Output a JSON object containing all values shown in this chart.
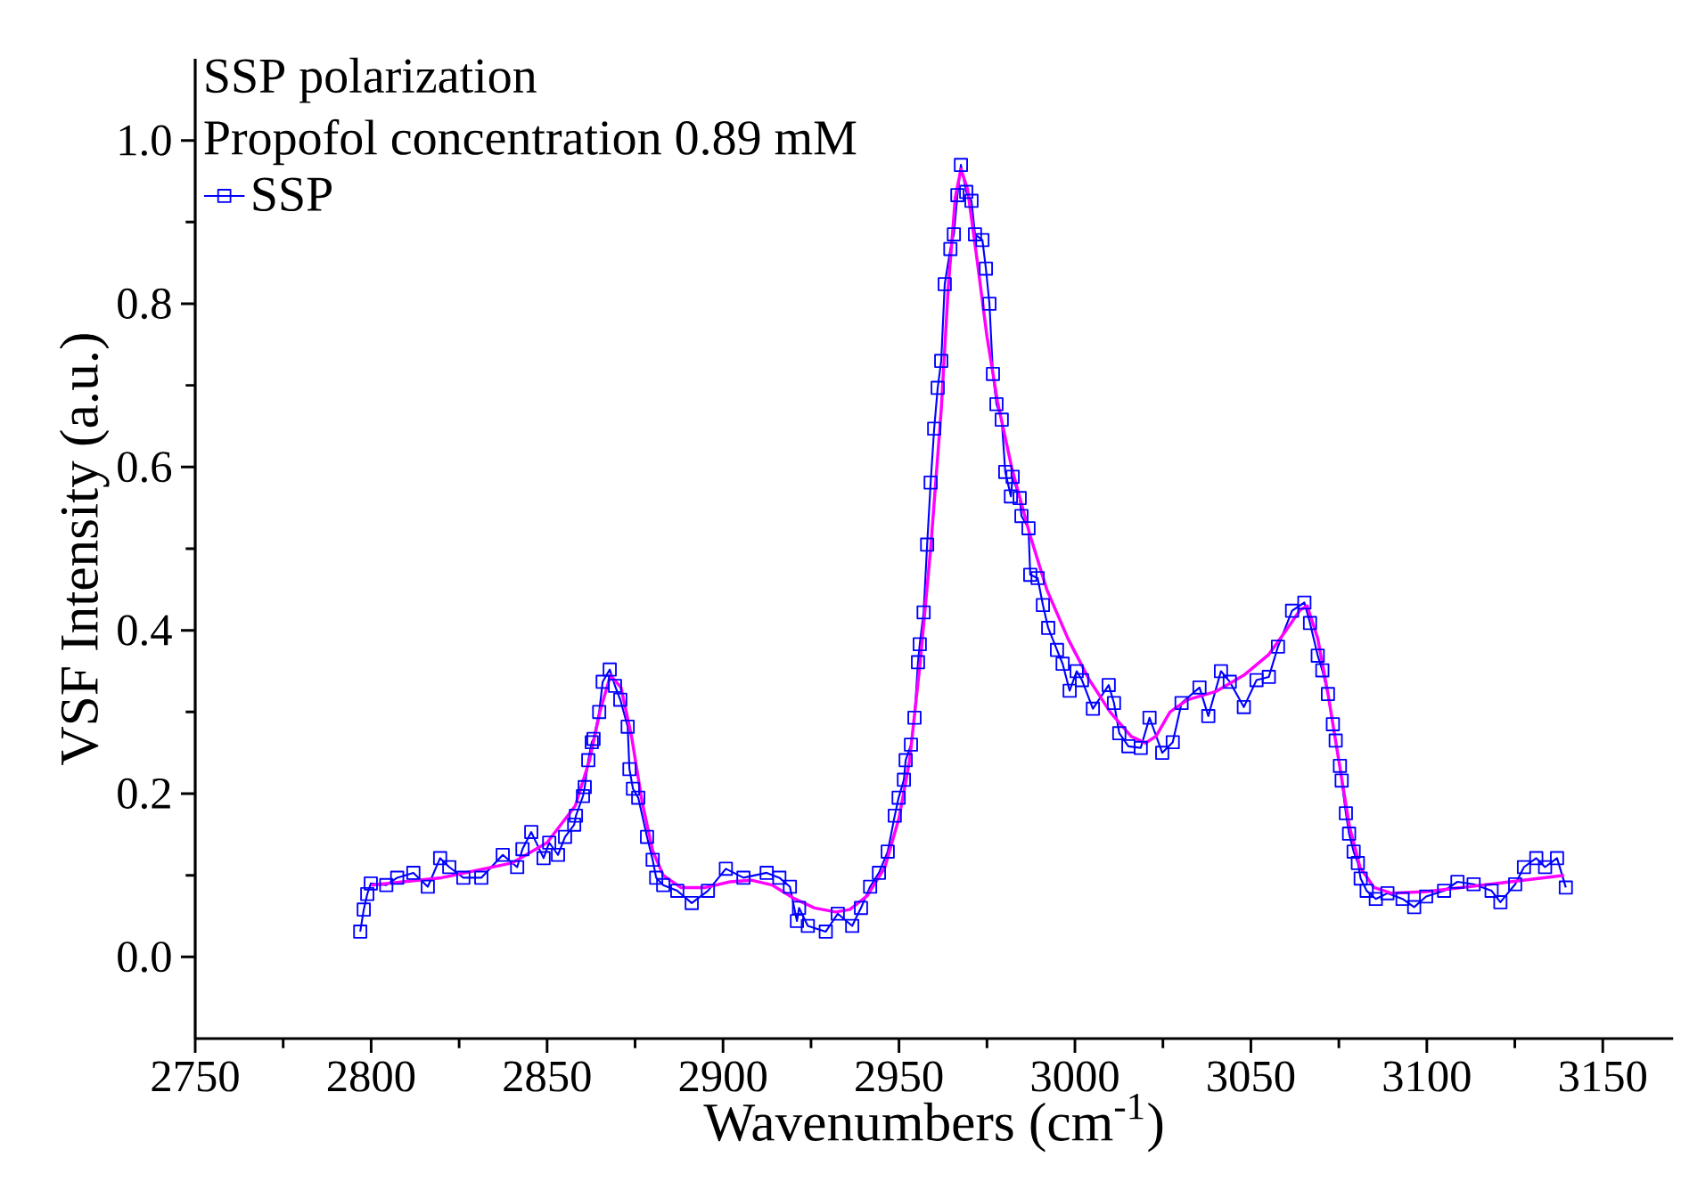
{
  "chart_data": {
    "type": "line",
    "annotations": [
      "SSP polarization",
      "Propofol concentration 0.89 mM"
    ],
    "xlabel": "Wavenumbers (cm$^{-1}$)",
    "ylabel": "VSF Intensity (a.u.)",
    "xlim": [
      2750,
      3170
    ],
    "ylim": [
      -0.1,
      1.1
    ],
    "xticks": [
      2750,
      2800,
      2850,
      2900,
      2950,
      3000,
      3050,
      3100,
      3150
    ],
    "yticks": [
      {
        "value": 0,
        "label": "0.0"
      },
      0.2,
      0.4,
      0.6,
      0.8,
      {
        "value": 1,
        "label": "1.0"
      }
    ],
    "legend": "top left",
    "series": [
      {
        "name": "SSP",
        "color": "#0000ff",
        "marker": "square",
        "line_style": "solid",
        "x": [
          2796.9,
          2797.9,
          2798.9,
          2799.9,
          2804.3,
          2807.4,
          2812.0,
          2816.1,
          2819.6,
          2822.2,
          2826.2,
          2831.3,
          2837.4,
          2841.5,
          2843.0,
          2845.5,
          2849.0,
          2850.6,
          2853.1,
          2855.1,
          2857.7,
          2858.2,
          2860.2,
          2860.7,
          2861.7,
          2862.7,
          2863.2,
          2864.8,
          2865.8,
          2867.8,
          2869.3,
          2870.8,
          2872.9,
          2873.4,
          2874.4,
          2875.9,
          2878.4,
          2880.0,
          2881.0,
          2883.0,
          2887.0,
          2891.1,
          2895.7,
          2900.8,
          2905.8,
          2912.4,
          2916.0,
          2919.0,
          2921.0,
          2921.6,
          2924.1,
          2929.2,
          2932.6,
          2936.7,
          2939.2,
          2941.8,
          2944.3,
          2946.8,
          2948.8,
          2949.9,
          2951.4,
          2951.9,
          2953.4,
          2954.4,
          2955.4,
          2955.9,
          2957.0,
          2958.0,
          2959.0,
          2960.0,
          2961.0,
          2962.0,
          2963.0,
          2964.6,
          2965.6,
          2966.6,
          2967.6,
          2969.1,
          2970.6,
          2971.6,
          2973.7,
          2974.7,
          2975.7,
          2976.7,
          2977.7,
          2979.2,
          2980.2,
          2981.8,
          2982.3,
          2984.3,
          2984.8,
          2986.8,
          2987.3,
          2989.4,
          2990.9,
          2992.4,
          2994.9,
          2996.5,
          2998.5,
          3000.5,
          3002.0,
          3005.1,
          3009.6,
          3011.1,
          3012.6,
          3015.2,
          3018.7,
          3021.2,
          3024.8,
          3027.8,
          3030.3,
          3035.4,
          3037.9,
          3041.5,
          3044.0,
          3048.0,
          3051.6,
          3055.1,
          3057.7,
          3061.7,
          3065.2,
          3066.8,
          3069.0,
          3070.3,
          3071.9,
          3073.3,
          3074.1,
          3075.3,
          3075.8,
          3077.0,
          3077.9,
          3079.2,
          3080.4,
          3081.2,
          3082.9,
          3085.5,
          3088.8,
          3093.1,
          3096.4,
          3099.8,
          3104.9,
          3108.7,
          3113.3,
          3118.4,
          3120.9,
          3125.1,
          3127.6,
          3131.1,
          3133.6,
          3137.0,
          3139.5
        ],
        "values": [
          0.031,
          0.058,
          0.077,
          0.09,
          0.088,
          0.097,
          0.103,
          0.086,
          0.121,
          0.11,
          0.097,
          0.097,
          0.125,
          0.11,
          0.132,
          0.153,
          0.121,
          0.14,
          0.125,
          0.147,
          0.162,
          0.173,
          0.197,
          0.208,
          0.241,
          0.263,
          0.267,
          0.3,
          0.337,
          0.352,
          0.332,
          0.315,
          0.282,
          0.23,
          0.206,
          0.195,
          0.147,
          0.119,
          0.097,
          0.088,
          0.081,
          0.066,
          0.081,
          0.108,
          0.097,
          0.103,
          0.097,
          0.086,
          0.044,
          0.06,
          0.038,
          0.031,
          0.053,
          0.038,
          0.06,
          0.086,
          0.103,
          0.129,
          0.173,
          0.195,
          0.217,
          0.241,
          0.26,
          0.293,
          0.361,
          0.383,
          0.422,
          0.505,
          0.581,
          0.647,
          0.697,
          0.73,
          0.824,
          0.867,
          0.885,
          0.933,
          0.97,
          0.937,
          0.926,
          0.885,
          0.878,
          0.843,
          0.8,
          0.714,
          0.677,
          0.658,
          0.594,
          0.564,
          0.588,
          0.562,
          0.54,
          0.525,
          0.468,
          0.464,
          0.431,
          0.403,
          0.376,
          0.359,
          0.326,
          0.35,
          0.339,
          0.304,
          0.333,
          0.311,
          0.274,
          0.258,
          0.256,
          0.293,
          0.25,
          0.263,
          0.311,
          0.33,
          0.295,
          0.35,
          0.337,
          0.306,
          0.339,
          0.343,
          0.38,
          0.424,
          0.434,
          0.409,
          0.369,
          0.351,
          0.322,
          0.285,
          0.265,
          0.234,
          0.216,
          0.176,
          0.151,
          0.129,
          0.115,
          0.096,
          0.081,
          0.071,
          0.078,
          0.071,
          0.061,
          0.074,
          0.081,
          0.092,
          0.089,
          0.081,
          0.067,
          0.089,
          0.11,
          0.121,
          0.11,
          0.121,
          0.085
        ]
      },
      {
        "color": "#ff00ff",
        "marker": "none",
        "line_style": "solid",
        "x": [
          2800,
          2820,
          2840,
          2850,
          2858,
          2862,
          2865,
          2868,
          2871,
          2874,
          2877,
          2880,
          2883,
          2888,
          2895,
          2902,
          2908,
          2914,
          2920,
          2926,
          2932,
          2936,
          2941,
          2946,
          2950,
          2953,
          2956,
          2959,
          2962,
          2964,
          2966,
          2967.6,
          2969.5,
          2972,
          2975,
          2978,
          2982,
          2987,
          2992,
          2998,
          3004,
          3010,
          3016,
          3020,
          3023,
          3027,
          3032,
          3040,
          3048,
          3055,
          3060,
          3064,
          3066,
          3069,
          3072,
          3075,
          3078,
          3081,
          3085,
          3090,
          3100,
          3120,
          3139
        ],
        "values": [
          0.088,
          0.097,
          0.115,
          0.14,
          0.185,
          0.24,
          0.3,
          0.345,
          0.33,
          0.27,
          0.19,
          0.13,
          0.1,
          0.085,
          0.085,
          0.092,
          0.094,
          0.088,
          0.072,
          0.06,
          0.055,
          0.058,
          0.075,
          0.11,
          0.17,
          0.24,
          0.36,
          0.5,
          0.67,
          0.82,
          0.93,
          0.965,
          0.94,
          0.86,
          0.76,
          0.68,
          0.6,
          0.52,
          0.45,
          0.39,
          0.34,
          0.3,
          0.27,
          0.262,
          0.27,
          0.3,
          0.315,
          0.325,
          0.345,
          0.37,
          0.4,
          0.425,
          0.43,
          0.39,
          0.32,
          0.24,
          0.16,
          0.11,
          0.085,
          0.078,
          0.08,
          0.09,
          0.1
        ]
      }
    ]
  }
}
